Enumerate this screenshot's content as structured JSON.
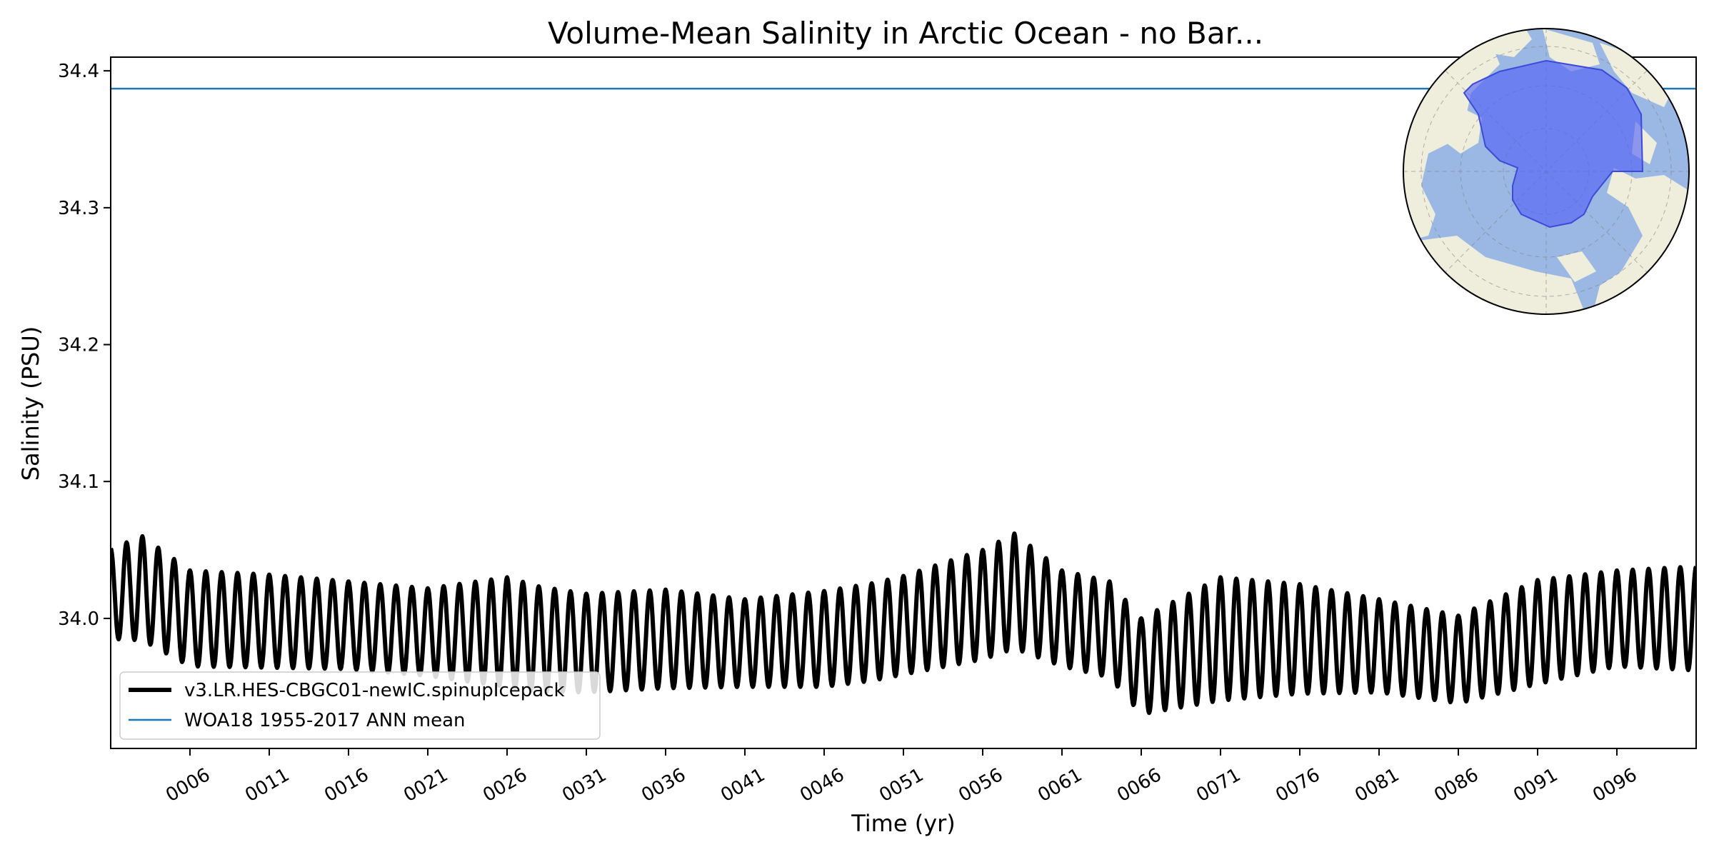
{
  "chart_data": {
    "type": "line",
    "title": "Volume-Mean Salinity in Arctic Ocean - no Bar...",
    "xlabel": "Time (yr)",
    "ylabel": "Salinity (PSU)",
    "xlim": [
      1,
      101
    ],
    "ylim": [
      33.905,
      34.41
    ],
    "x_tick_values": [
      6,
      11,
      16,
      21,
      26,
      31,
      36,
      41,
      46,
      51,
      56,
      61,
      66,
      71,
      76,
      81,
      86,
      91,
      96
    ],
    "x_tick_labels": [
      "0006",
      "0011",
      "0016",
      "0021",
      "0026",
      "0031",
      "0036",
      "0041",
      "0046",
      "0051",
      "0056",
      "0061",
      "0066",
      "0071",
      "0076",
      "0081",
      "0086",
      "0091",
      "0096"
    ],
    "y_ticks": [
      34.0,
      34.1,
      34.2,
      34.3,
      34.4
    ],
    "y_tick_labels": [
      "34.0",
      "34.1",
      "34.2",
      "34.3",
      "34.4"
    ],
    "grid": false,
    "legend_position": "lower-left",
    "inset_map": "north-polar-stereographic-arctic-region",
    "series": [
      {
        "name": "v3.LR.HES-CBGC01-newIC.spinupIcepack",
        "color": "#000000",
        "kind": "seasonal-oscillation",
        "annual_mean": [
          [
            1,
            34.018
          ],
          [
            3,
            34.022
          ],
          [
            6,
            34.0
          ],
          [
            11,
            33.998
          ],
          [
            16,
            33.995
          ],
          [
            21,
            33.99
          ],
          [
            26,
            33.99
          ],
          [
            28,
            33.985
          ],
          [
            31,
            33.982
          ],
          [
            36,
            33.985
          ],
          [
            41,
            33.982
          ],
          [
            46,
            33.985
          ],
          [
            49,
            33.99
          ],
          [
            51,
            33.995
          ],
          [
            56,
            34.01
          ],
          [
            58,
            34.02
          ],
          [
            61,
            34.0
          ],
          [
            64,
            33.992
          ],
          [
            66,
            33.965
          ],
          [
            71,
            33.985
          ],
          [
            76,
            33.985
          ],
          [
            81,
            33.98
          ],
          [
            86,
            33.97
          ],
          [
            91,
            33.99
          ],
          [
            96,
            34.0
          ],
          [
            101,
            34.0
          ]
        ],
        "seasonal_amplitude": [
          [
            1,
            0.033
          ],
          [
            3,
            0.038
          ],
          [
            6,
            0.035
          ],
          [
            11,
            0.034
          ],
          [
            16,
            0.032
          ],
          [
            21,
            0.032
          ],
          [
            26,
            0.04
          ],
          [
            31,
            0.036
          ],
          [
            36,
            0.036
          ],
          [
            41,
            0.032
          ],
          [
            46,
            0.035
          ],
          [
            51,
            0.036
          ],
          [
            56,
            0.04
          ],
          [
            58,
            0.042
          ],
          [
            61,
            0.035
          ],
          [
            66,
            0.035
          ],
          [
            71,
            0.045
          ],
          [
            76,
            0.04
          ],
          [
            81,
            0.034
          ],
          [
            86,
            0.032
          ],
          [
            91,
            0.038
          ],
          [
            96,
            0.035
          ],
          [
            101,
            0.038
          ]
        ]
      },
      {
        "name": "WOA18 1955-2017 ANN mean",
        "color": "#1f77b4",
        "value": 34.387
      }
    ]
  }
}
